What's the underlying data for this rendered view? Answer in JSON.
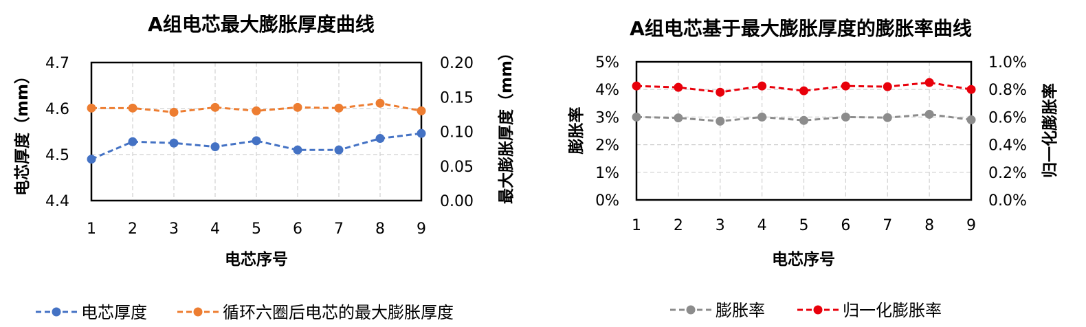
{
  "chart_data": [
    {
      "type": "line",
      "title": "A组电芯最大膨胀厚度曲线",
      "xlabel": "电芯序号",
      "ylabel_left": "电芯厚度（mm）",
      "ylabel_right": "最大膨胀厚度（mm）",
      "categories": [
        "1",
        "2",
        "3",
        "4",
        "5",
        "6",
        "7",
        "8",
        "9"
      ],
      "y_left": {
        "lim": [
          4.4,
          4.7
        ],
        "ticks": [
          "4.4",
          "4.5",
          "4.6",
          "4.7"
        ]
      },
      "y_right": {
        "lim": [
          0.0,
          0.2
        ],
        "ticks": [
          "0.00",
          "0.05",
          "0.10",
          "0.15",
          "0.20"
        ]
      },
      "grid": true,
      "legend_position": "bottom",
      "series": [
        {
          "name": "电芯厚度",
          "axis": "left",
          "color": "#4472C4",
          "values": [
            4.49,
            4.528,
            4.525,
            4.517,
            4.53,
            4.51,
            4.51,
            4.535,
            4.546
          ]
        },
        {
          "name": "循环六圈后电芯的最大膨胀厚度",
          "axis": "right",
          "color": "#ED7D31",
          "values": [
            0.134,
            0.134,
            0.128,
            0.135,
            0.13,
            0.135,
            0.134,
            0.141,
            0.13
          ]
        }
      ]
    },
    {
      "type": "line",
      "title": "A组电芯基于最大膨胀厚度的膨胀率曲线",
      "xlabel": "电芯序号",
      "ylabel_left": "膨胀率",
      "ylabel_right": "归一化膨胀率",
      "categories": [
        "1",
        "2",
        "3",
        "4",
        "5",
        "6",
        "7",
        "8",
        "9"
      ],
      "y_left": {
        "lim": [
          0,
          5
        ],
        "ticks": [
          "0%",
          "1%",
          "2%",
          "3%",
          "4%",
          "5%"
        ]
      },
      "y_right": {
        "lim": [
          0.0,
          1.0
        ],
        "ticks": [
          "0.0%",
          "0.2%",
          "0.4%",
          "0.6%",
          "0.8%",
          "1.0%"
        ]
      },
      "grid": true,
      "legend_position": "bottom",
      "series": [
        {
          "name": "膨胀率",
          "axis": "left",
          "color": "#8C8C8C",
          "values": [
            3.0,
            2.97,
            2.85,
            3.0,
            2.88,
            3.0,
            2.98,
            3.1,
            2.9
          ]
        },
        {
          "name": "归一化膨胀率",
          "axis": "right",
          "color": "#E8000B",
          "values": [
            0.825,
            0.815,
            0.78,
            0.825,
            0.79,
            0.825,
            0.82,
            0.85,
            0.8
          ]
        }
      ]
    }
  ]
}
